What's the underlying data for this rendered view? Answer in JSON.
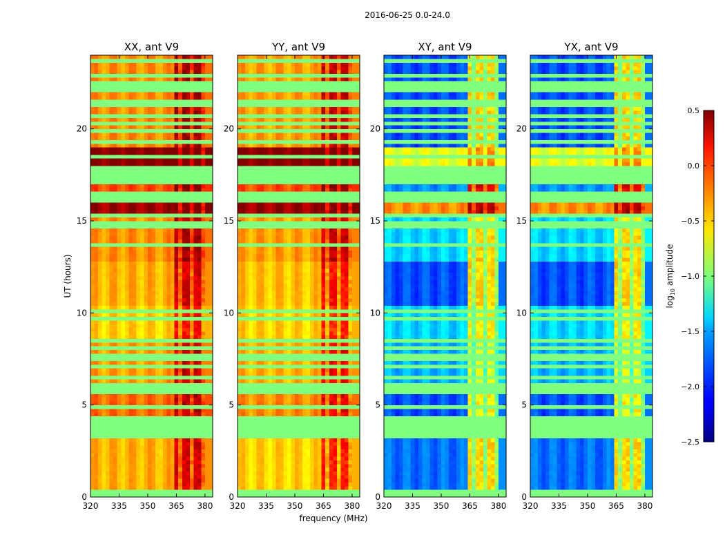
{
  "figure_title": "2016-06-25 0.0-24.0",
  "chart_data": {
    "type": "heatmap",
    "title": "2016-06-25 0.0-24.0",
    "xlabel": "frequency (MHz)",
    "ylabel": "UT (hours)",
    "xlim": [
      320,
      384
    ],
    "ylim": [
      0,
      24
    ],
    "xticks": [
      "320",
      "335",
      "350",
      "365",
      "380"
    ],
    "xtick_values": [
      320,
      335,
      350,
      365,
      380
    ],
    "yticks": [
      "0",
      "5",
      "10",
      "15",
      "20"
    ],
    "ytick_values": [
      0,
      5,
      10,
      15,
      20
    ],
    "panels": [
      {
        "title": "XX, ant V9",
        "key": "xx"
      },
      {
        "title": "YY, ant V9",
        "key": "yy"
      },
      {
        "title": "XY, ant V9",
        "key": "xy"
      },
      {
        "title": "YX, ant V9",
        "key": "yx"
      }
    ],
    "high_band_mhz": [
      363,
      380
    ],
    "flag_value": -1.0,
    "segments_note_fields": [
      "start_hr",
      "end_hr",
      "striped",
      "xx_low",
      "xx_high",
      "yy_low",
      "yy_high",
      "xy_low",
      "xy_high"
    ],
    "segments": [
      [
        0.0,
        0.4,
        0,
        -1.0,
        -1.0,
        -1.0,
        -1.0,
        -1.0,
        -1.0
      ],
      [
        0.4,
        3.2,
        0,
        -0.4,
        0.15,
        -0.5,
        -0.05,
        -1.8,
        -0.6
      ],
      [
        3.2,
        3.4,
        1,
        -0.3,
        0.1,
        -0.35,
        0.0,
        -0.9,
        -0.7
      ],
      [
        3.4,
        4.4,
        0,
        -1.0,
        -1.0,
        -1.0,
        -1.0,
        -1.0,
        -1.0
      ],
      [
        4.4,
        5.8,
        1,
        -0.2,
        0.25,
        -0.3,
        0.1,
        -1.9,
        -0.7
      ],
      [
        5.8,
        8.3,
        1,
        -0.35,
        0.2,
        -0.4,
        0.05,
        -1.6,
        -0.8
      ],
      [
        8.3,
        10.3,
        1,
        -0.5,
        0.0,
        -0.5,
        -0.1,
        -1.5,
        -0.7
      ],
      [
        10.3,
        12.7,
        0,
        -0.4,
        0.15,
        -0.45,
        0.0,
        -1.9,
        -0.6
      ],
      [
        12.7,
        15.2,
        1,
        -0.3,
        0.3,
        -0.35,
        0.2,
        -1.5,
        -0.6
      ],
      [
        15.2,
        16.2,
        1,
        0.4,
        0.45,
        0.4,
        0.45,
        -0.3,
        0.3
      ],
      [
        16.2,
        16.6,
        0,
        -1.0,
        -1.0,
        -1.0,
        -1.0,
        -1.0,
        -1.0
      ],
      [
        16.6,
        17.0,
        0,
        -0.1,
        0.4,
        -0.1,
        0.35,
        -1.7,
        0.1
      ],
      [
        17.0,
        17.9,
        0,
        -1.0,
        -1.0,
        -1.0,
        -1.0,
        -1.0,
        -1.0
      ],
      [
        17.9,
        19.0,
        1,
        0.5,
        0.5,
        0.5,
        0.5,
        -0.7,
        -0.4
      ],
      [
        19.0,
        24.0,
        1,
        -0.3,
        0.3,
        -0.35,
        0.2,
        -1.9,
        -0.6
      ]
    ],
    "colorbar": {
      "label": "log10 amplitude",
      "label_main": "log",
      "label_sub": "10",
      "label_rest": " amplitude",
      "range": [
        -2.5,
        0.5
      ],
      "ticks": [
        "0.5",
        "0.0",
        "−0.5",
        "−1.0",
        "−1.5",
        "−2.0",
        "−2.5"
      ],
      "tick_values": [
        0.5,
        0.0,
        -0.5,
        -1.0,
        -1.5,
        -2.0,
        -2.5
      ],
      "colormap": "jet"
    }
  }
}
